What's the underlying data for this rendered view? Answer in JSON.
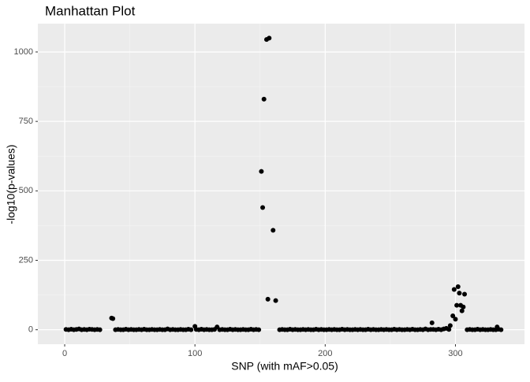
{
  "chart_data": {
    "type": "scatter",
    "title": "Manhattan Plot",
    "x_label": "SNP (with mAF>0.05)",
    "y_label": "-log10(p-values)",
    "color": "#000000",
    "grid": true,
    "xlim": [
      -20.6,
      353
    ],
    "ylim": [
      -52,
      1102
    ],
    "xticks": [
      0,
      100,
      200,
      300
    ],
    "yticks": [
      0,
      250,
      500,
      750,
      1000
    ],
    "x": [
      1,
      3,
      5,
      7,
      9,
      11,
      13,
      15,
      17,
      19,
      21,
      23,
      25,
      27,
      36,
      37,
      39,
      41,
      43,
      45,
      47,
      49,
      51,
      53,
      55,
      57,
      59,
      61,
      63,
      65,
      67,
      69,
      71,
      73,
      75,
      77,
      79,
      81,
      83,
      85,
      87,
      89,
      91,
      93,
      95,
      97,
      100,
      101,
      103,
      105,
      107,
      109,
      111,
      113,
      115,
      117,
      119,
      121,
      123,
      125,
      127,
      129,
      131,
      133,
      135,
      137,
      139,
      141,
      143,
      145,
      147,
      149,
      151,
      152,
      153,
      155,
      156,
      157,
      160,
      162,
      165,
      167,
      169,
      171,
      173,
      175,
      177,
      179,
      181,
      183,
      185,
      187,
      189,
      191,
      193,
      195,
      197,
      199,
      201,
      203,
      205,
      207,
      209,
      211,
      213,
      215,
      217,
      219,
      221,
      223,
      225,
      227,
      229,
      231,
      233,
      235,
      237,
      239,
      241,
      243,
      245,
      247,
      249,
      251,
      253,
      255,
      257,
      259,
      261,
      263,
      265,
      267,
      269,
      271,
      273,
      275,
      277,
      279,
      281,
      282,
      283,
      285,
      287,
      289,
      291,
      293,
      295,
      296,
      298,
      299,
      300,
      301,
      302,
      303,
      304,
      305,
      306,
      307,
      309,
      311,
      313,
      315,
      317,
      319,
      321,
      323,
      325,
      327,
      329,
      331,
      333,
      335,
      332
    ],
    "values": [
      1,
      0,
      2,
      0,
      1,
      3,
      0,
      1,
      0,
      2,
      1,
      0,
      1,
      0,
      42,
      40,
      0,
      1,
      0,
      0,
      2,
      0,
      1,
      0,
      0,
      1,
      0,
      2,
      0,
      0,
      1,
      0,
      0,
      1,
      0,
      0,
      3,
      0,
      1,
      0,
      0,
      1,
      0,
      0,
      2,
      0,
      12,
      1,
      0,
      2,
      0,
      1,
      0,
      0,
      1,
      10,
      0,
      1,
      0,
      0,
      2,
      0,
      1,
      0,
      0,
      1,
      0,
      0,
      2,
      0,
      1,
      0,
      570,
      440,
      830,
      1045,
      110,
      1050,
      358,
      105,
      0,
      1,
      0,
      0,
      2,
      0,
      1,
      0,
      0,
      1,
      0,
      1,
      0,
      0,
      2,
      0,
      1,
      0,
      0,
      1,
      0,
      1,
      0,
      0,
      2,
      0,
      1,
      0,
      0,
      1,
      0,
      1,
      0,
      0,
      2,
      0,
      1,
      0,
      0,
      1,
      0,
      1,
      0,
      0,
      2,
      0,
      1,
      0,
      0,
      1,
      0,
      2,
      0,
      0,
      1,
      0,
      3,
      0,
      1,
      25,
      1,
      0,
      2,
      0,
      3,
      5,
      1,
      15,
      50,
      145,
      38,
      88,
      155,
      132,
      88,
      68,
      82,
      128,
      0,
      1,
      0,
      0,
      2,
      0,
      1,
      0,
      0,
      1,
      0,
      0,
      2,
      0,
      10
    ]
  }
}
